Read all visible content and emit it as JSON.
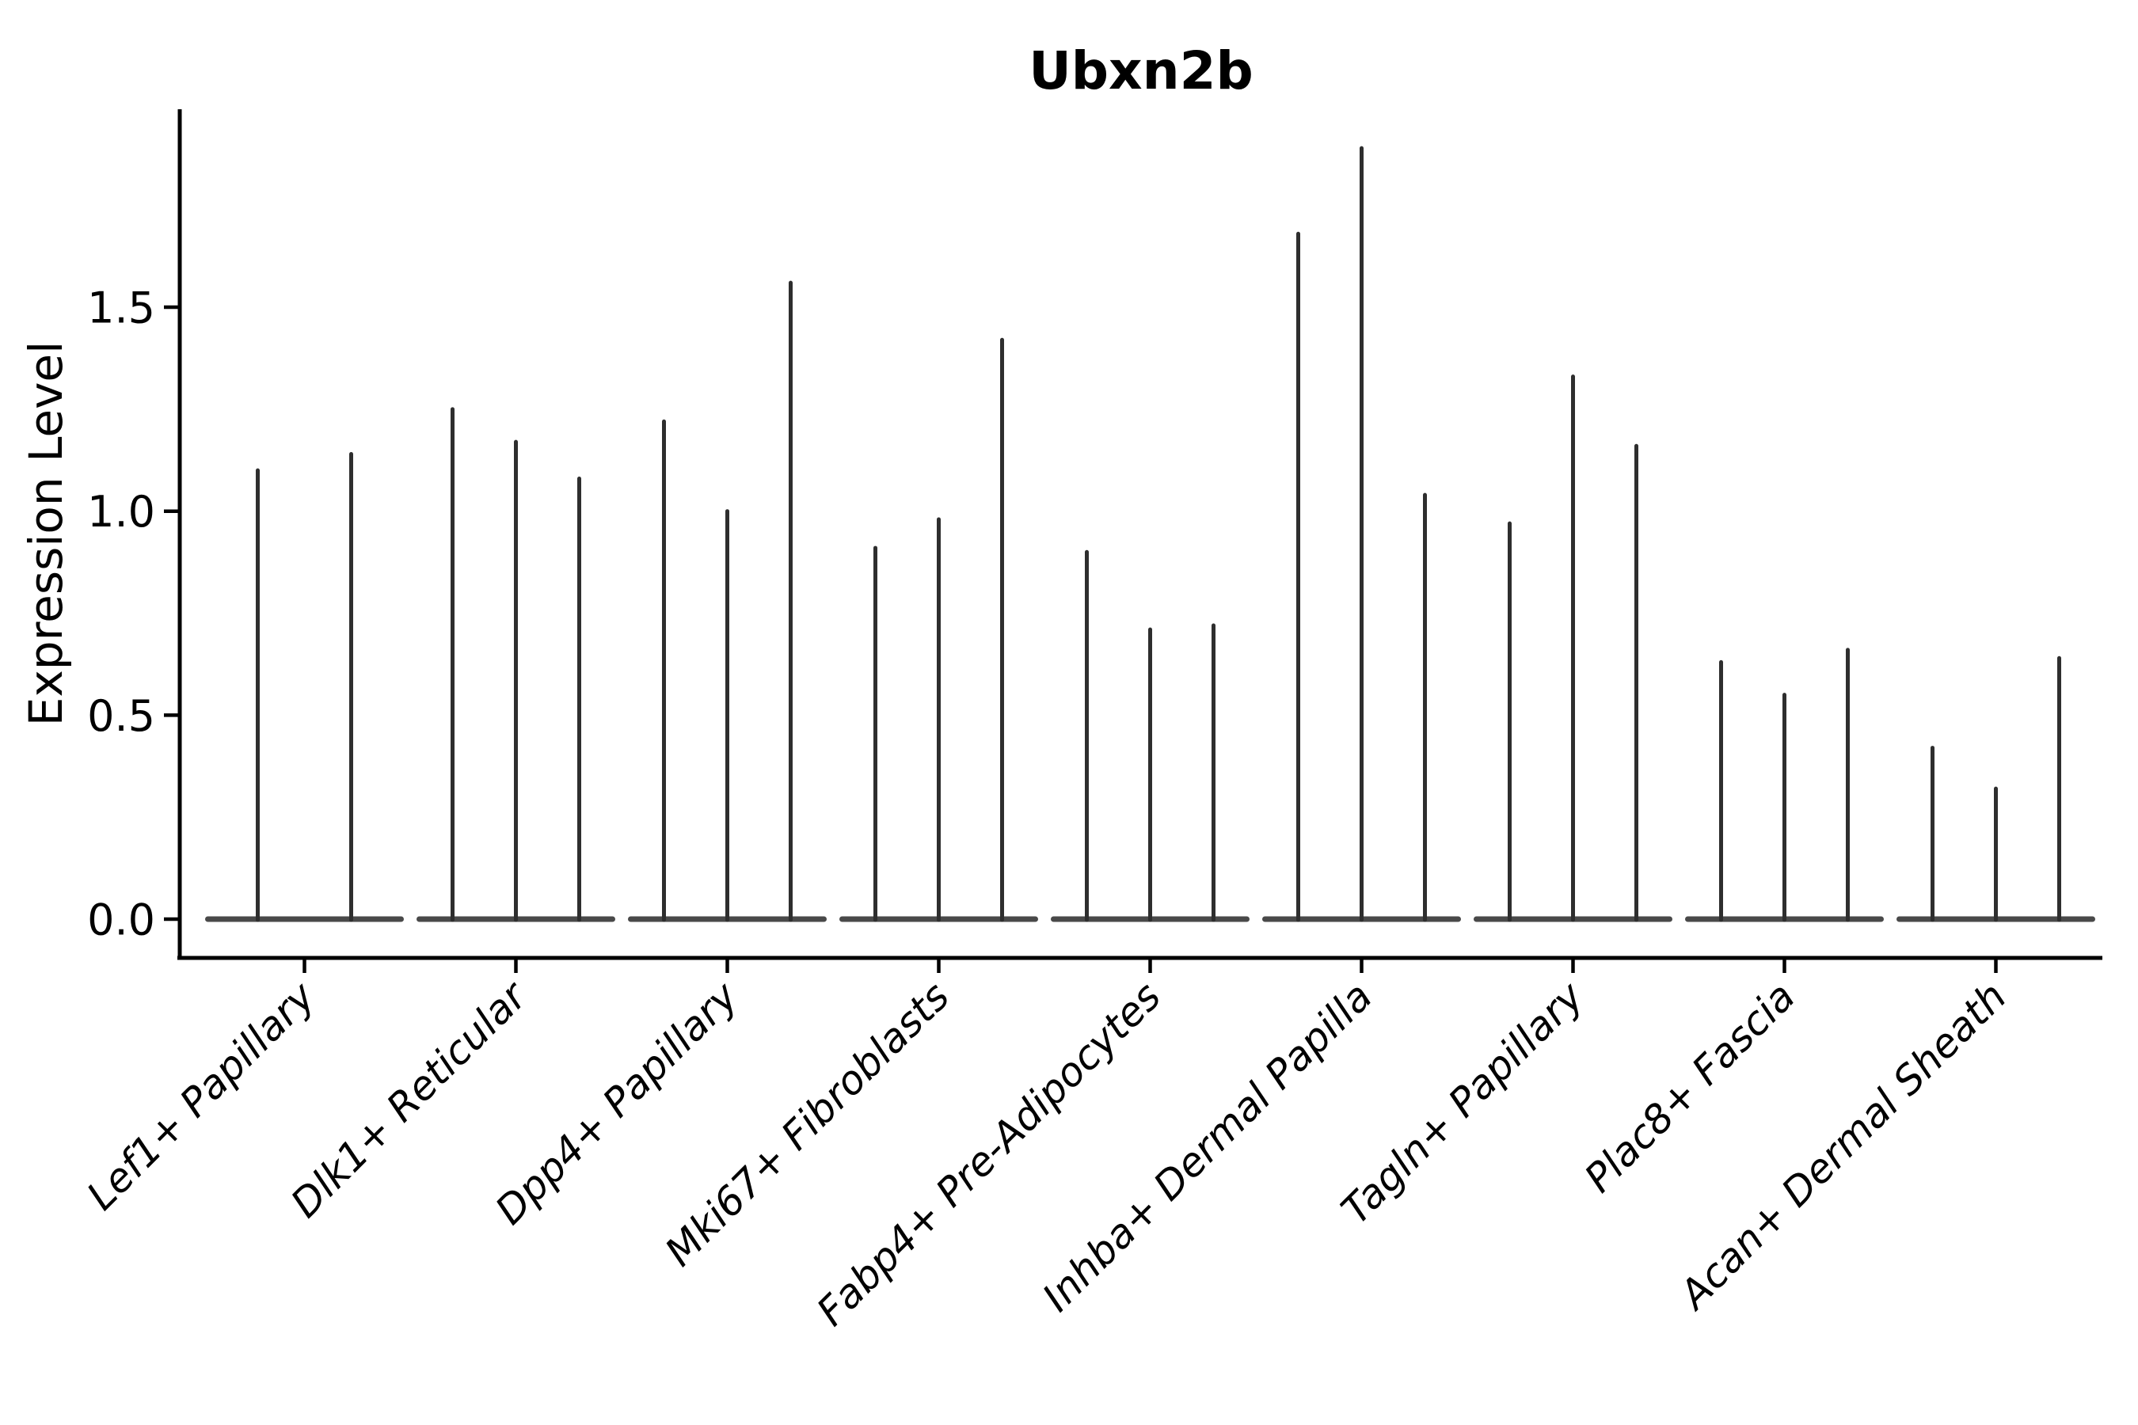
{
  "figure": {
    "background": "#ffffff",
    "ink_color": "#000000",
    "violin_color": "#2e2e2e",
    "violin_base_color": "#3a3a3a"
  },
  "chart_data": {
    "type": "violin",
    "title": "Ubxn2b",
    "ylabel": "Expression Level",
    "xlabel": "",
    "ylim": [
      0,
      1.99
    ],
    "yticks": [
      0.0,
      0.5,
      1.0,
      1.5
    ],
    "ytick_labels": [
      "0.0",
      "0.5",
      "1.0",
      "1.5"
    ],
    "grid": false,
    "legend": "none",
    "x_tick_rotation_deg": 45,
    "categories": [
      {
        "label": "Lef1+ Papillary",
        "violin_maxima": [
          1.1,
          1.14
        ]
      },
      {
        "label": "Dlk1+ Reticular",
        "violin_maxima": [
          1.25,
          1.17,
          1.08
        ]
      },
      {
        "label": "Dpp4+ Papillary",
        "violin_maxima": [
          1.22,
          1.0,
          1.56
        ]
      },
      {
        "label": "Mki67+ Fibroblasts",
        "violin_maxima": [
          0.91,
          0.98,
          1.42
        ]
      },
      {
        "label": "Fabp4+ Pre-Adipocytes",
        "violin_maxima": [
          0.9,
          0.71,
          0.72
        ]
      },
      {
        "label": "Inhba+ Dermal Papilla",
        "violin_maxima": [
          1.68,
          1.89,
          1.04
        ]
      },
      {
        "label": "Tagln+ Papillary",
        "violin_maxima": [
          0.97,
          1.33,
          1.16
        ]
      },
      {
        "label": "Plac8+ Fascia",
        "violin_maxima": [
          0.63,
          0.55,
          0.66
        ]
      },
      {
        "label": "Acan+ Dermal Sheath",
        "violin_maxima": [
          0.42,
          0.32,
          0.64
        ]
      }
    ]
  }
}
